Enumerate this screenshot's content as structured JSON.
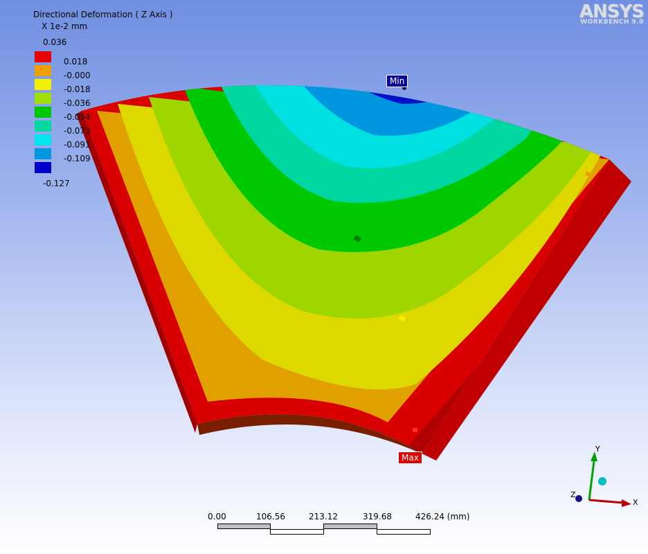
{
  "app": {
    "logo_text": "ANSYS",
    "logo_subtitle": "WORKBENCH 9.0"
  },
  "result": {
    "title": "Directional Deformation ( Z Axis )",
    "units": "X 1e-2 mm"
  },
  "legend": {
    "max_label": "0.036",
    "entries": [
      {
        "value": "0.018",
        "color": "#e80000"
      },
      {
        "value": "-0.000",
        "color": "#f0a000"
      },
      {
        "value": "-0.018",
        "color": "#f0f000"
      },
      {
        "value": "-0.036",
        "color": "#a0e000"
      },
      {
        "value": "-0.054",
        "color": "#00c800"
      },
      {
        "value": "-0.073",
        "color": "#00d8a0"
      },
      {
        "value": "-0.091",
        "color": "#00e6f0"
      },
      {
        "value": "-0.109",
        "color": "#0096e0"
      },
      {
        "value": "-0.127",
        "color": "#0000c8"
      }
    ]
  },
  "probes": {
    "min_label": "Min",
    "max_label": "Max"
  },
  "scale_bar": {
    "ticks": [
      "0.00",
      "106.56",
      "213.12",
      "319.68",
      "426.24 (mm)"
    ]
  },
  "triad": {
    "x_label": "X",
    "y_label": "Y",
    "z_label": "Z"
  },
  "contour_colors": {
    "red": "#d80000",
    "orange": "#e8a000",
    "yellow": "#e6e600",
    "yellow_green": "#a6dc00",
    "green": "#00c800",
    "teal": "#00d8a0",
    "cyan": "#00e0e0",
    "light_blue": "#0096e0",
    "blue": "#0010c8"
  }
}
